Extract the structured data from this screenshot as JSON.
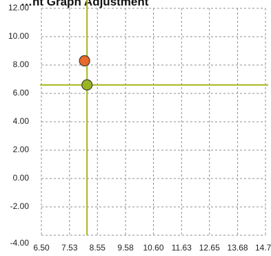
{
  "chart_data": {
    "type": "scatter",
    "title": "…nt Graph Adjustment",
    "x_ticks": [
      "6.50",
      "7.53",
      "8.55",
      "9.58",
      "10.60",
      "11.63",
      "12.65",
      "13.68",
      "14.70"
    ],
    "y_ticks": [
      "12.00",
      "10.00",
      "8.00",
      "6.00",
      "4.00",
      "2.00",
      "0.00",
      "-2.00",
      "-4.00"
    ],
    "xlim": [
      6.5,
      14.7
    ],
    "ylim": [
      -4.0,
      12.0
    ],
    "grid": true,
    "points": [
      {
        "x": 8.08,
        "y": 8.3,
        "color": "#e8692a"
      },
      {
        "x": 8.17,
        "y": 6.6,
        "color": "#9ab521"
      }
    ],
    "crosshair": {
      "x": 8.17,
      "y": 6.6,
      "color": "#a6b51a"
    }
  }
}
